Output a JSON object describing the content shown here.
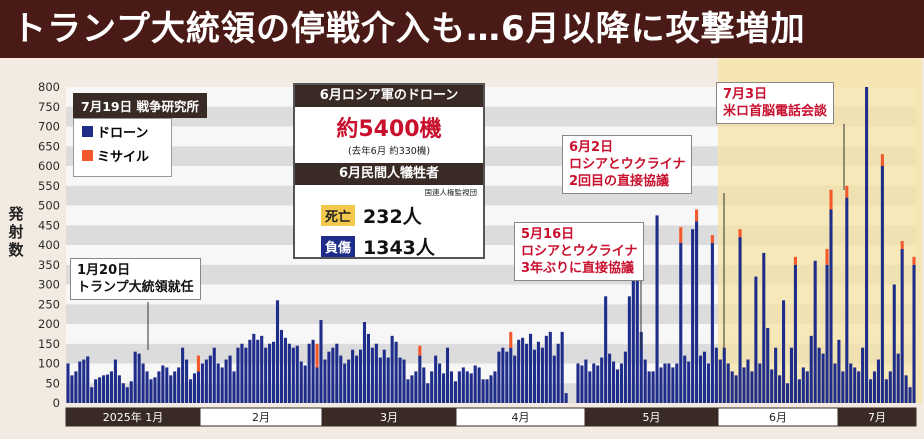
{
  "headline": "トランプ大統領の停戦介入も…6月以降に攻撃増加",
  "date_tag": "7月19日 戦争研究所",
  "legend": [
    {
      "label": "ドローン",
      "color": "#1e2c8a"
    },
    {
      "label": "ミサイル",
      "color": "#f2582a"
    }
  ],
  "stats": {
    "drone_heading": "6月ロシア軍のドローン",
    "drone_total": "約5400機",
    "drone_prev": "(去年6月 約330機)",
    "casualty_heading": "6月民間人犠牲者",
    "source": "国連人権監視団",
    "deaths_label": "死亡",
    "deaths_value": "232人",
    "injured_label": "負傷",
    "injured_value": "1343人"
  },
  "annotations": {
    "inauguration": [
      "1月20日",
      "トランプ大統領就任"
    ],
    "may16": [
      "5月16日",
      "ロシアとウクライナ",
      "3年ぶりに直接協議"
    ],
    "jun2": [
      "6月2日",
      "ロシアとウクライナ",
      "2回目の直接協議"
    ],
    "jul3": [
      "7月3日",
      "米ロ首脳電話会談"
    ]
  },
  "colors": {
    "drone": "#1e2c8a",
    "missile": "#f2582a",
    "highlight": "#f6e3a3",
    "header": "#4a1b16",
    "annotation_red": "#c8102e"
  },
  "chart_data": {
    "type": "bar",
    "stacked": true,
    "ylabel": "発射数",
    "ylim": [
      0,
      800
    ],
    "yticks": [
      0,
      50,
      100,
      150,
      200,
      250,
      300,
      350,
      400,
      450,
      500,
      550,
      600,
      650,
      700,
      750,
      800
    ],
    "month_labels": [
      "2025年 1月",
      "2月",
      "3月",
      "4月",
      "5月",
      "6月",
      "7月"
    ],
    "highlight_period": "2025-06-01 to 2025-07-19",
    "series": [
      {
        "name": "ドローン",
        "values": [
          100,
          70,
          80,
          105,
          110,
          118,
          40,
          60,
          65,
          70,
          72,
          80,
          110,
          70,
          50,
          40,
          55,
          130,
          125,
          100,
          80,
          60,
          65,
          80,
          95,
          90,
          70,
          80,
          90,
          140,
          110,
          60,
          75,
          80,
          100,
          110,
          120,
          140,
          100,
          90,
          110,
          120,
          80,
          140,
          150,
          140,
          160,
          175,
          160,
          170,
          140,
          150,
          155,
          260,
          185,
          165,
          150,
          140,
          145,
          105,
          95,
          150,
          160,
          90,
          210,
          110,
          130,
          140,
          150,
          120,
          100,
          110,
          135,
          120,
          135,
          205,
          175,
          140,
          150,
          115,
          135,
          115,
          170,
          155,
          115,
          110,
          60,
          70,
          80,
          120,
          90,
          50,
          80,
          120,
          100,
          75,
          140,
          80,
          55,
          80,
          90,
          80,
          75,
          95,
          90,
          60,
          60,
          70,
          80,
          130,
          140,
          130,
          140,
          120,
          160,
          165,
          150,
          175,
          135,
          155,
          140,
          170,
          180,
          120,
          150,
          180,
          25,
          0,
          0,
          100,
          95,
          110,
          80,
          100,
          95,
          115,
          270,
          125,
          105,
          85,
          100,
          130,
          270,
          340,
          350,
          180,
          110,
          80,
          80,
          475,
          90,
          100,
          100,
          90,
          100,
          405,
          120,
          105,
          440,
          460,
          120,
          130,
          100,
          405,
          140,
          110,
          140,
          100,
          80,
          70,
          420,
          90,
          110,
          80,
          320,
          100,
          380,
          190,
          85,
          140,
          70,
          260,
          50,
          140,
          350,
          60,
          90,
          80,
          170,
          360,
          140,
          125,
          350,
          490,
          100,
          160,
          80,
          520,
          100,
          90,
          80,
          140,
          820,
          60,
          80,
          110,
          600,
          60,
          80,
          300,
          125,
          390,
          70,
          40,
          350
        ]
      },
      {
        "name": "ミサイル",
        "values": [
          0,
          0,
          0,
          0,
          0,
          0,
          0,
          0,
          0,
          0,
          0,
          0,
          0,
          0,
          0,
          0,
          0,
          0,
          0,
          0,
          0,
          0,
          0,
          0,
          0,
          0,
          0,
          0,
          0,
          0,
          0,
          0,
          0,
          40,
          0,
          0,
          0,
          0,
          0,
          0,
          0,
          0,
          0,
          0,
          0,
          0,
          0,
          0,
          0,
          0,
          0,
          0,
          0,
          0,
          0,
          0,
          0,
          0,
          0,
          0,
          0,
          0,
          0,
          60,
          0,
          0,
          0,
          0,
          0,
          0,
          0,
          0,
          0,
          0,
          0,
          0,
          0,
          0,
          0,
          0,
          0,
          0,
          0,
          0,
          0,
          0,
          0,
          0,
          0,
          25,
          0,
          0,
          0,
          0,
          0,
          0,
          0,
          0,
          0,
          0,
          0,
          0,
          0,
          0,
          0,
          0,
          0,
          0,
          0,
          0,
          0,
          0,
          40,
          0,
          0,
          0,
          0,
          0,
          0,
          0,
          0,
          0,
          0,
          0,
          0,
          0,
          0,
          0,
          0,
          0,
          0,
          0,
          0,
          0,
          0,
          0,
          0,
          0,
          0,
          0,
          0,
          0,
          0,
          10,
          0,
          0,
          0,
          0,
          0,
          0,
          0,
          0,
          0,
          0,
          0,
          40,
          0,
          0,
          0,
          30,
          0,
          0,
          0,
          20,
          0,
          0,
          0,
          0,
          0,
          0,
          20,
          0,
          0,
          0,
          0,
          0,
          0,
          0,
          0,
          0,
          0,
          0,
          0,
          0,
          20,
          0,
          0,
          0,
          0,
          0,
          0,
          0,
          40,
          50,
          0,
          0,
          0,
          30,
          0,
          0,
          0,
          0,
          20,
          0,
          0,
          0,
          30,
          0,
          0,
          0,
          0,
          20,
          0,
          0,
          20
        ]
      }
    ]
  }
}
